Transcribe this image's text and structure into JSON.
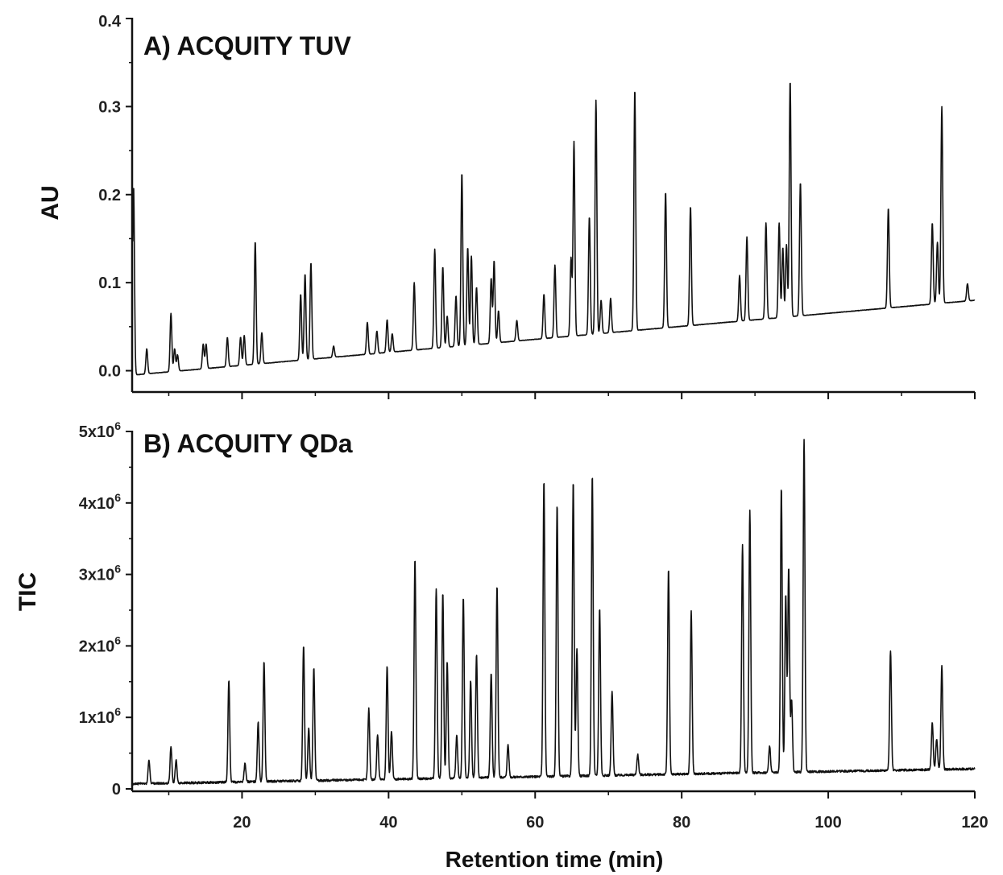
{
  "chart_data": {
    "type": "line",
    "x_axis": {
      "label": "Retention time (min)",
      "lim": [
        5,
        120
      ],
      "ticks": [
        20,
        40,
        60,
        80,
        100,
        120
      ],
      "tick_labels": [
        "20",
        "40",
        "60",
        "80",
        "100",
        "120"
      ]
    },
    "panels": [
      {
        "id": "A",
        "title": "A) ACQUITY TUV",
        "ylabel": "AU",
        "ylim": [
          -0.005,
          0.4
        ],
        "yticks": [
          0.0,
          0.1,
          0.2,
          0.3,
          0.4
        ],
        "ytick_labels": [
          "0.0",
          "0.1",
          "0.2",
          "0.3",
          "0.4"
        ],
        "baseline": {
          "start": [
            5,
            -0.005
          ],
          "end": [
            120,
            0.08
          ]
        },
        "peaks": [
          [
            5.2,
            0.21
          ],
          [
            7,
            0.025
          ],
          [
            10.3,
            0.065
          ],
          [
            10.8,
            0.025
          ],
          [
            11.2,
            0.018
          ],
          [
            14.7,
            0.03
          ],
          [
            15.1,
            0.03
          ],
          [
            18,
            0.038
          ],
          [
            19.8,
            0.038
          ],
          [
            20.3,
            0.04
          ],
          [
            21.8,
            0.147
          ],
          [
            22.7,
            0.043
          ],
          [
            28,
            0.087
          ],
          [
            28.6,
            0.11
          ],
          [
            29.4,
            0.123
          ],
          [
            32.5,
            0.028
          ],
          [
            37.1,
            0.055
          ],
          [
            38.4,
            0.045
          ],
          [
            39.8,
            0.058
          ],
          [
            40.5,
            0.042
          ],
          [
            43.5,
            0.1
          ],
          [
            46.3,
            0.138
          ],
          [
            47.4,
            0.118
          ],
          [
            48,
            0.062
          ],
          [
            49.2,
            0.085
          ],
          [
            50,
            0.225
          ],
          [
            50.8,
            0.14
          ],
          [
            51.3,
            0.13
          ],
          [
            52,
            0.095
          ],
          [
            54,
            0.105
          ],
          [
            54.4,
            0.125
          ],
          [
            55,
            0.068
          ],
          [
            57.5,
            0.057
          ],
          [
            61.2,
            0.087
          ],
          [
            62.7,
            0.12
          ],
          [
            64.9,
            0.128
          ],
          [
            65.3,
            0.26
          ],
          [
            67.4,
            0.175
          ],
          [
            68.3,
            0.307
          ],
          [
            69,
            0.08
          ],
          [
            70.3,
            0.082
          ],
          [
            73.6,
            0.32
          ],
          [
            77.8,
            0.203
          ],
          [
            81.2,
            0.187
          ],
          [
            87.9,
            0.108
          ],
          [
            88.9,
            0.152
          ],
          [
            91.5,
            0.168
          ],
          [
            93.3,
            0.168
          ],
          [
            93.8,
            0.14
          ],
          [
            94.3,
            0.143
          ],
          [
            94.8,
            0.33
          ],
          [
            96.2,
            0.214
          ],
          [
            108.2,
            0.185
          ],
          [
            114.2,
            0.168
          ],
          [
            114.9,
            0.146
          ],
          [
            115.5,
            0.3
          ],
          [
            119,
            0.099
          ]
        ]
      },
      {
        "id": "B",
        "title": "B) ACQUITY QDa",
        "ylabel": "TIC",
        "ylim": [
          0,
          5000000
        ],
        "yticks": [
          0,
          1000000,
          2000000,
          3000000,
          4000000,
          5000000
        ],
        "ytick_labels": [
          "0",
          "1x10",
          "2x10",
          "3x10",
          "4x10",
          "5x10"
        ],
        "ytick_exponent": "6",
        "baseline": {
          "start": [
            5,
            70000
          ],
          "end": [
            120,
            280000
          ]
        },
        "peaks": [
          [
            7.3,
            400000
          ],
          [
            10.3,
            600000
          ],
          [
            11,
            400000
          ],
          [
            18.2,
            1520000
          ],
          [
            20.4,
            350000
          ],
          [
            22.2,
            930000
          ],
          [
            23,
            1790000
          ],
          [
            28.4,
            2020000
          ],
          [
            29.1,
            850000
          ],
          [
            29.8,
            1690000
          ],
          [
            37.3,
            1120000
          ],
          [
            38.5,
            760000
          ],
          [
            39.8,
            1720000
          ],
          [
            40.4,
            800000
          ],
          [
            43.6,
            3220000
          ],
          [
            46.5,
            2810000
          ],
          [
            47.4,
            2750000
          ],
          [
            48,
            1790000
          ],
          [
            49.3,
            750000
          ],
          [
            50.2,
            2680000
          ],
          [
            51.2,
            1520000
          ],
          [
            52,
            1880000
          ],
          [
            54,
            1630000
          ],
          [
            54.8,
            2850000
          ],
          [
            56.3,
            620000
          ],
          [
            61.2,
            4330000
          ],
          [
            63,
            3980000
          ],
          [
            65.2,
            4300000
          ],
          [
            65.7,
            1970000
          ],
          [
            67.8,
            4390000
          ],
          [
            68.8,
            2530000
          ],
          [
            70.5,
            1360000
          ],
          [
            74,
            480000
          ],
          [
            78.2,
            3080000
          ],
          [
            81.3,
            2480000
          ],
          [
            88.3,
            3430000
          ],
          [
            89.3,
            3900000
          ],
          [
            92,
            600000
          ],
          [
            93.6,
            4220000
          ],
          [
            94.2,
            2720000
          ],
          [
            94.6,
            3100000
          ],
          [
            95,
            1250000
          ],
          [
            96.7,
            4900000
          ],
          [
            108.5,
            1940000
          ],
          [
            114.2,
            930000
          ],
          [
            114.8,
            700000
          ],
          [
            115.5,
            1720000
          ]
        ]
      }
    ]
  }
}
